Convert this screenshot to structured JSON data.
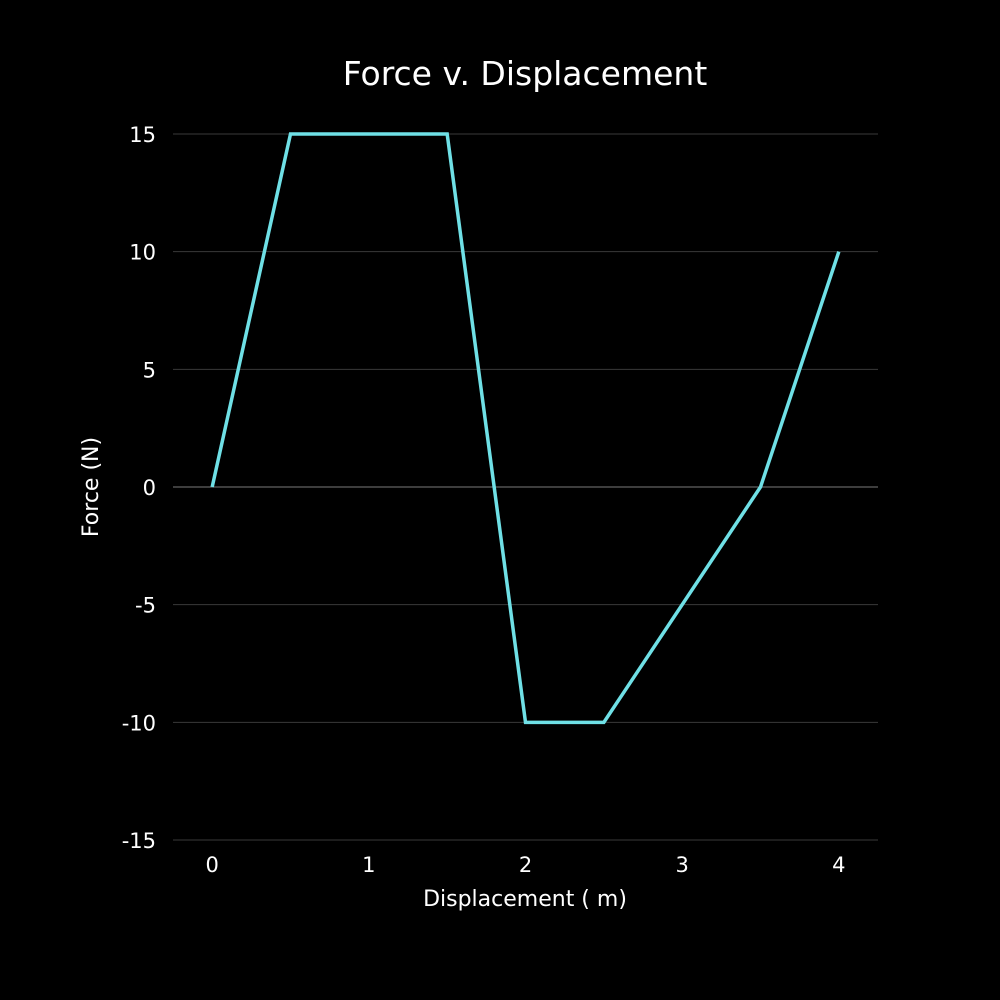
{
  "chart_data": {
    "type": "line",
    "title": "Force v. Displacement",
    "xlabel": "Displacement ( m)",
    "ylabel": "Force (N)",
    "xlim": [
      -0.25,
      4.25
    ],
    "ylim": [
      -15,
      15
    ],
    "x_ticks": [
      0,
      1,
      2,
      3,
      4
    ],
    "x_tick_labels": [
      "0",
      "1",
      "2",
      "3",
      "4"
    ],
    "y_ticks": [
      15,
      10,
      5,
      0,
      -5,
      -10,
      -15
    ],
    "y_tick_labels": [
      "15",
      "10",
      "5",
      "0",
      "-5",
      "-10",
      "-15"
    ],
    "grid": "horizontal",
    "legend": "none",
    "series": [
      {
        "color": "#6fe0e6",
        "points": [
          {
            "x": 0,
            "y": 0
          },
          {
            "x": 0.5,
            "y": 15
          },
          {
            "x": 1.5,
            "y": 15
          },
          {
            "x": 2,
            "y": -10
          },
          {
            "x": 2.5,
            "y": -10
          },
          {
            "x": 3.5,
            "y": 0
          },
          {
            "x": 4,
            "y": 10
          }
        ]
      }
    ]
  }
}
